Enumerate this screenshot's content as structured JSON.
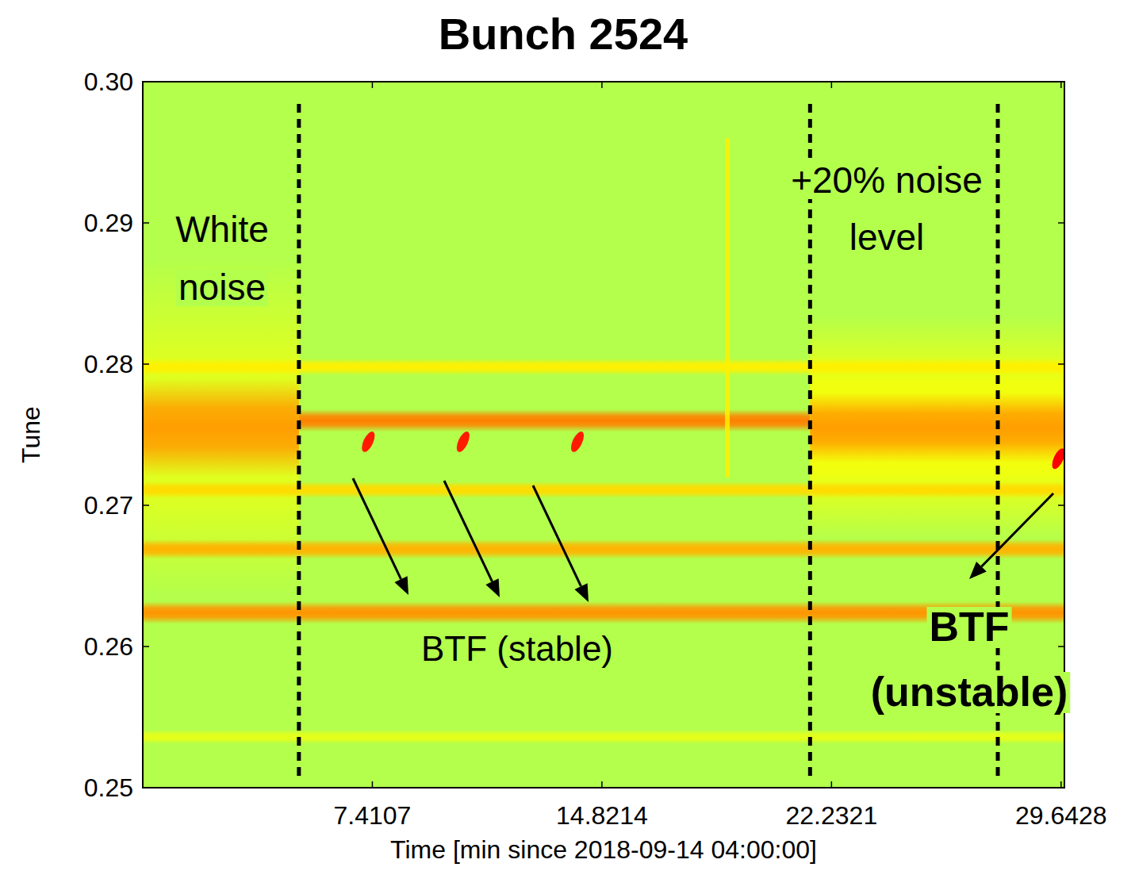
{
  "chart_data": {
    "type": "heatmap",
    "title": "Bunch 2524",
    "x_label": "Time [min since 2018-09-14 04:00:00]",
    "y_label": "Tune",
    "xlim": [
      0,
      29.75
    ],
    "xticks": [
      7.4107,
      14.8214,
      22.2321,
      29.6428
    ],
    "ylim": [
      0.25,
      0.3
    ],
    "yticks": [
      0.25,
      0.26,
      0.27,
      0.28,
      0.29,
      {
        "value": 0.3,
        "label": "0.30"
      }
    ],
    "background_level": 0.55,
    "bands": [
      {
        "tune": 0.2755,
        "width": 0.012,
        "start": 0,
        "end": 5.04,
        "level": 0.6
      },
      {
        "tune": 0.2755,
        "width": 0.0035,
        "start": 0,
        "end": 5.04,
        "level": 0.72
      },
      {
        "tune": 0.276,
        "width": 0.0008,
        "start": 5.04,
        "end": 21.54,
        "level": 0.75
      },
      {
        "tune": 0.2755,
        "width": 0.008,
        "start": 21.54,
        "end": 29.75,
        "level": 0.62
      },
      {
        "tune": 0.2755,
        "width": 0.0025,
        "start": 21.54,
        "end": 29.75,
        "level": 0.72
      },
      {
        "tune": 0.2798,
        "width": 0.0006,
        "start": 0,
        "end": 29.75,
        "level": 0.64
      },
      {
        "tune": 0.2711,
        "width": 0.0006,
        "start": 0,
        "end": 29.75,
        "level": 0.66
      },
      {
        "tune": 0.2669,
        "width": 0.0007,
        "start": 0,
        "end": 29.75,
        "level": 0.7
      },
      {
        "tune": 0.2624,
        "width": 0.0008,
        "start": 0,
        "end": 29.75,
        "level": 0.73
      },
      {
        "tune": 0.2536,
        "width": 0.0005,
        "start": 0,
        "end": 29.75,
        "level": 0.6
      }
    ],
    "spots": [
      {
        "time": 7.28,
        "tune": 0.2745,
        "level": 0.85
      },
      {
        "time": 10.34,
        "tune": 0.2745,
        "level": 0.85
      },
      {
        "time": 14.03,
        "tune": 0.2745,
        "level": 0.85
      },
      {
        "time": 29.56,
        "tune": 0.2733,
        "level": 0.88
      }
    ],
    "streaks": [
      {
        "time": 18.87,
        "tune_from": 0.272,
        "tune_to": 0.296,
        "level": 0.64
      }
    ],
    "vlines": [
      5.04,
      21.54,
      27.6
    ],
    "annotations": [
      "White noise",
      "BTF (stable)",
      "+20% noise level",
      "BTF (unstable)"
    ]
  }
}
